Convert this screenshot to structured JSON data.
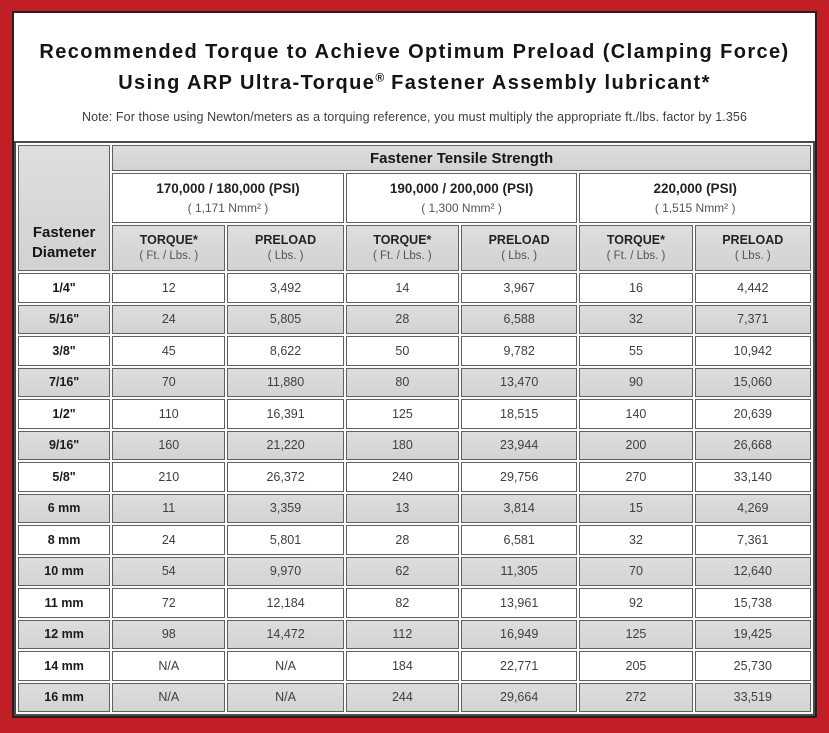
{
  "header": {
    "title_line1": "Recommended Torque to Achieve Optimum Preload (Clamping Force)",
    "title_line2_pre": "Using ARP Ultra-Torque",
    "title_line2_sup": "®",
    "title_line2_post": " Fastener Assembly lubricant*",
    "note": "Note: For those using Newton/meters as a torquing reference, you must multiply the appropriate ft./lbs. factor by 1.356"
  },
  "table": {
    "tensile_strength_header": "Fastener Tensile Strength",
    "diameter_header": {
      "line1": "Fastener",
      "line2": "Diameter"
    },
    "strength_groups": [
      {
        "psi": "170,000 / 180,000 (PSI)",
        "nmm": "( 1,171 Nmm² )"
      },
      {
        "psi": "190,000 / 200,000 (PSI)",
        "nmm": "( 1,300 Nmm² )"
      },
      {
        "psi": "220,000 (PSI)",
        "nmm": "( 1,515 Nmm² )"
      }
    ],
    "column_headers": {
      "torque_label": "TORQUE*",
      "torque_sub": "( Ft. / Lbs. )",
      "preload_label": "PRELOAD",
      "preload_sub": "( Lbs. )"
    },
    "rows": [
      {
        "diameter": "1/4\"",
        "values": [
          "12",
          "3,492",
          "14",
          "3,967",
          "16",
          "4,442"
        ]
      },
      {
        "diameter": "5/16\"",
        "values": [
          "24",
          "5,805",
          "28",
          "6,588",
          "32",
          "7,371"
        ]
      },
      {
        "diameter": "3/8\"",
        "values": [
          "45",
          "8,622",
          "50",
          "9,782",
          "55",
          "10,942"
        ]
      },
      {
        "diameter": "7/16\"",
        "values": [
          "70",
          "11,880",
          "80",
          "13,470",
          "90",
          "15,060"
        ]
      },
      {
        "diameter": "1/2\"",
        "values": [
          "110",
          "16,391",
          "125",
          "18,515",
          "140",
          "20,639"
        ]
      },
      {
        "diameter": "9/16\"",
        "values": [
          "160",
          "21,220",
          "180",
          "23,944",
          "200",
          "26,668"
        ]
      },
      {
        "diameter": "5/8\"",
        "values": [
          "210",
          "26,372",
          "240",
          "29,756",
          "270",
          "33,140"
        ]
      },
      {
        "diameter": "6 mm",
        "values": [
          "11",
          "3,359",
          "13",
          "3,814",
          "15",
          "4,269"
        ]
      },
      {
        "diameter": "8 mm",
        "values": [
          "24",
          "5,801",
          "28",
          "6,581",
          "32",
          "7,361"
        ]
      },
      {
        "diameter": "10 mm",
        "values": [
          "54",
          "9,970",
          "62",
          "11,305",
          "70",
          "12,640"
        ]
      },
      {
        "diameter": "11 mm",
        "values": [
          "72",
          "12,184",
          "82",
          "13,961",
          "92",
          "15,738"
        ]
      },
      {
        "diameter": "12 mm",
        "values": [
          "98",
          "14,472",
          "112",
          "16,949",
          "125",
          "19,425"
        ]
      },
      {
        "diameter": "14 mm",
        "values": [
          "N/A",
          "N/A",
          "184",
          "22,771",
          "205",
          "25,730"
        ]
      },
      {
        "diameter": "16 mm",
        "values": [
          "N/A",
          "N/A",
          "244",
          "29,664",
          "272",
          "33,519"
        ]
      }
    ]
  },
  "colors": {
    "frame_red": "#C11F25",
    "header_gray": "#D6D6D6",
    "row_stripe_gray": "#D8D8D8",
    "cell_border": "#616163",
    "title_text": "#141414",
    "value_text": "#3F3F3F"
  }
}
